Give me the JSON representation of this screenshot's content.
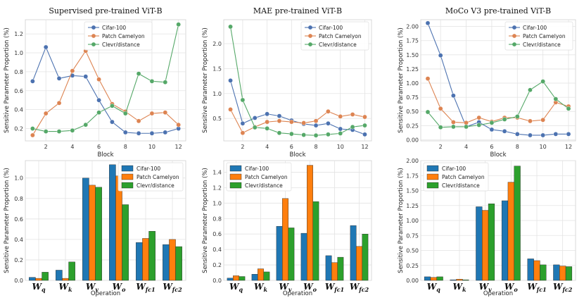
{
  "series_names": [
    "Cifar-100",
    "Patch Camelyon",
    "Clevr/distance"
  ],
  "colors": [
    "#4c72b0",
    "#dd8452",
    "#55a868"
  ],
  "bar_colors": [
    "#1f77b4",
    "#ff7f0e",
    "#2ca02c"
  ],
  "chart_data": [
    {
      "type": "line",
      "title": "Supervised pre-trained ViT-B",
      "xlabel": "Block",
      "ylabel": "Sensitive Parameter Proportion (%)",
      "x": [
        1,
        2,
        3,
        4,
        5,
        6,
        7,
        8,
        9,
        10,
        11,
        12
      ],
      "xticks": [
        2,
        4,
        6,
        8,
        10,
        12
      ],
      "xlim": [
        0.45,
        12.55
      ],
      "ylim": [
        0.07,
        1.35
      ],
      "yticks": [
        0.2,
        0.4,
        0.6,
        0.8,
        1.0,
        1.2
      ],
      "yticklabels": [
        "0.2",
        "0.4",
        "0.6",
        "0.8",
        "1.0",
        "1.2"
      ],
      "legend": "upper center",
      "series": [
        {
          "name": "Cifar-100",
          "values": [
            0.7,
            1.06,
            0.73,
            0.76,
            0.75,
            0.5,
            0.27,
            0.16,
            0.15,
            0.15,
            0.16,
            0.2
          ]
        },
        {
          "name": "Patch Camelyon",
          "values": [
            0.13,
            0.36,
            0.47,
            0.81,
            1.02,
            0.72,
            0.46,
            0.38,
            0.28,
            0.36,
            0.37,
            0.24
          ]
        },
        {
          "name": "Clevr/distance",
          "values": [
            0.2,
            0.17,
            0.17,
            0.18,
            0.24,
            0.37,
            0.44,
            0.36,
            0.78,
            0.7,
            0.69,
            1.3
          ]
        }
      ]
    },
    {
      "type": "line",
      "title": "MAE pre-trained ViT-B",
      "xlabel": "Block",
      "ylabel": "Sensitive Parameter Proportion (%)",
      "x": [
        1,
        2,
        3,
        4,
        5,
        6,
        7,
        8,
        9,
        10,
        11,
        12
      ],
      "xticks": [
        2,
        4,
        6,
        8,
        10,
        12
      ],
      "xlim": [
        0.45,
        12.55
      ],
      "ylim": [
        0.05,
        2.48
      ],
      "yticks": [
        0.5,
        1.0,
        1.5,
        2.0
      ],
      "yticklabels": [
        "0.5",
        "1.0",
        "1.5",
        "2.0"
      ],
      "legend": "upper right",
      "series": [
        {
          "name": "Cifar-100",
          "values": [
            1.26,
            0.4,
            0.51,
            0.59,
            0.55,
            0.46,
            0.39,
            0.36,
            0.4,
            0.29,
            0.27,
            0.18
          ]
        },
        {
          "name": "Patch Camelyon",
          "values": [
            0.68,
            0.21,
            0.33,
            0.43,
            0.45,
            0.43,
            0.41,
            0.45,
            0.64,
            0.54,
            0.58,
            0.53
          ]
        },
        {
          "name": "Clevr/distance",
          "values": [
            2.34,
            0.87,
            0.32,
            0.3,
            0.21,
            0.19,
            0.17,
            0.16,
            0.18,
            0.2,
            0.33,
            0.36
          ]
        }
      ]
    },
    {
      "type": "line",
      "title": "MoCo V3 pre-trained ViT-B",
      "xlabel": "Block",
      "ylabel": "Sensitive Parameter Proportion (%)",
      "x": [
        1,
        2,
        3,
        4,
        5,
        6,
        7,
        8,
        9,
        10,
        11,
        12
      ],
      "xticks": [
        2,
        4,
        6,
        8,
        10,
        12
      ],
      "xlim": [
        0.45,
        12.55
      ],
      "ylim": [
        -0.02,
        2.12
      ],
      "yticks": [
        0.0,
        0.25,
        0.5,
        0.75,
        1.0,
        1.25,
        1.5,
        1.75,
        2.0
      ],
      "yticklabels": [
        "0.00",
        "0.25",
        "0.50",
        "0.75",
        "1.00",
        "1.25",
        "1.50",
        "1.75",
        "2.00"
      ],
      "legend": "upper right",
      "series": [
        {
          "name": "Cifar-100",
          "values": [
            2.06,
            1.49,
            0.78,
            0.23,
            0.31,
            0.18,
            0.15,
            0.1,
            0.08,
            0.08,
            0.1,
            0.1
          ]
        },
        {
          "name": "Patch Camelyon",
          "values": [
            1.08,
            0.55,
            0.31,
            0.3,
            0.39,
            0.32,
            0.39,
            0.39,
            0.33,
            0.35,
            0.66,
            0.59
          ]
        },
        {
          "name": "Clevr/distance",
          "values": [
            0.49,
            0.22,
            0.23,
            0.23,
            0.26,
            0.3,
            0.36,
            0.41,
            0.88,
            1.03,
            0.72,
            0.55
          ]
        }
      ]
    },
    {
      "type": "bar",
      "title": "",
      "xlabel": "Operation",
      "ylabel": "Sensitive Parameter Proportion (%)",
      "categories": [
        "Wq",
        "Wk",
        "Wv",
        "Wo",
        "Wfc1",
        "Wfc2"
      ],
      "ylim": [
        0,
        1.17
      ],
      "yticks": [
        0.0,
        0.2,
        0.4,
        0.6,
        0.8,
        1.0
      ],
      "yticklabels": [
        "0.0",
        "0.2",
        "0.4",
        "0.6",
        "0.8",
        "1.0"
      ],
      "legend": "upper right",
      "series": [
        {
          "name": "Cifar-100",
          "values": [
            0.03,
            0.1,
            1.0,
            1.13,
            0.37,
            0.35
          ]
        },
        {
          "name": "Patch Camelyon",
          "values": [
            0.02,
            0.02,
            0.93,
            1.02,
            0.41,
            0.4
          ]
        },
        {
          "name": "Clevr/distance",
          "values": [
            0.08,
            0.18,
            0.91,
            0.74,
            0.48,
            0.33
          ]
        }
      ]
    },
    {
      "type": "bar",
      "title": "",
      "xlabel": "Operation",
      "ylabel": "Sensitive Parameter Proportion (%)",
      "categories": [
        "Wq",
        "Wk",
        "Wv",
        "Wo",
        "Wfc1",
        "Wfc2"
      ],
      "ylim": [
        0,
        1.55
      ],
      "yticks": [
        0.0,
        0.2,
        0.4,
        0.6,
        0.8,
        1.0,
        1.2,
        1.4
      ],
      "yticklabels": [
        "0.0",
        "0.2",
        "0.4",
        "0.6",
        "0.8",
        "1.0",
        "1.2",
        "1.4"
      ],
      "legend": "upper left",
      "series": [
        {
          "name": "Cifar-100",
          "values": [
            0.03,
            0.08,
            0.7,
            0.61,
            0.32,
            0.71
          ]
        },
        {
          "name": "Patch Camelyon",
          "values": [
            0.06,
            0.15,
            1.06,
            1.49,
            0.23,
            0.44
          ]
        },
        {
          "name": "Clevr/distance",
          "values": [
            0.05,
            0.11,
            0.68,
            1.02,
            0.3,
            0.6
          ]
        }
      ]
    },
    {
      "type": "bar",
      "title": "",
      "xlabel": "Operation",
      "ylabel": "Sensitive Parameter Proportion (%)",
      "categories": [
        "Wq",
        "Wk",
        "Wv",
        "Wo",
        "Wfc1",
        "Wfc2"
      ],
      "ylim": [
        0,
        2.0
      ],
      "yticks": [
        0.0,
        0.25,
        0.5,
        0.75,
        1.0,
        1.25,
        1.5,
        1.75,
        2.0
      ],
      "yticklabels": [
        "0.00",
        "0.25",
        "0.50",
        "0.75",
        "1.00",
        "1.25",
        "1.50",
        "1.75",
        "2.00"
      ],
      "legend": "upper left",
      "series": [
        {
          "name": "Cifar-100",
          "values": [
            0.06,
            0.01,
            1.23,
            1.33,
            0.36,
            0.26
          ]
        },
        {
          "name": "Patch Camelyon",
          "values": [
            0.05,
            0.02,
            1.17,
            1.64,
            0.33,
            0.24
          ]
        },
        {
          "name": "Clevr/distance",
          "values": [
            0.06,
            0.01,
            1.28,
            1.91,
            0.26,
            0.23
          ]
        }
      ]
    }
  ]
}
